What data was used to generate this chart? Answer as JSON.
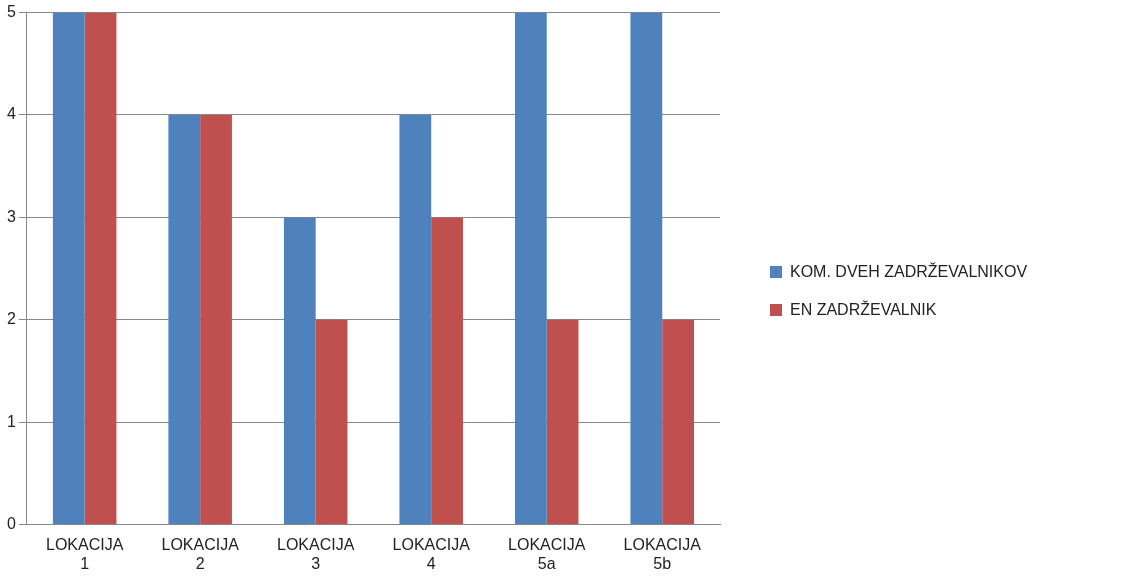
{
  "chart_data": {
    "type": "bar",
    "categories": [
      "LOKACIJA 1",
      "LOKACIJA 2",
      "LOKACIJA 3",
      "LOKACIJA 4",
      "LOKACIJA 5a",
      "LOKACIJA 5b"
    ],
    "series": [
      {
        "name": "KOM. DVEH ZADRŽEVALNIKOV",
        "color": "#4f81bd",
        "values": [
          5,
          4,
          3,
          4,
          5,
          5
        ]
      },
      {
        "name": "EN ZADRŽEVALNIK",
        "color": "#c0504d",
        "values": [
          5,
          4,
          2,
          3,
          2,
          2
        ]
      }
    ],
    "ylim": [
      0,
      5
    ],
    "yticks": [
      0,
      1,
      2,
      3,
      4,
      5
    ],
    "grid": "y",
    "legend": "right"
  }
}
